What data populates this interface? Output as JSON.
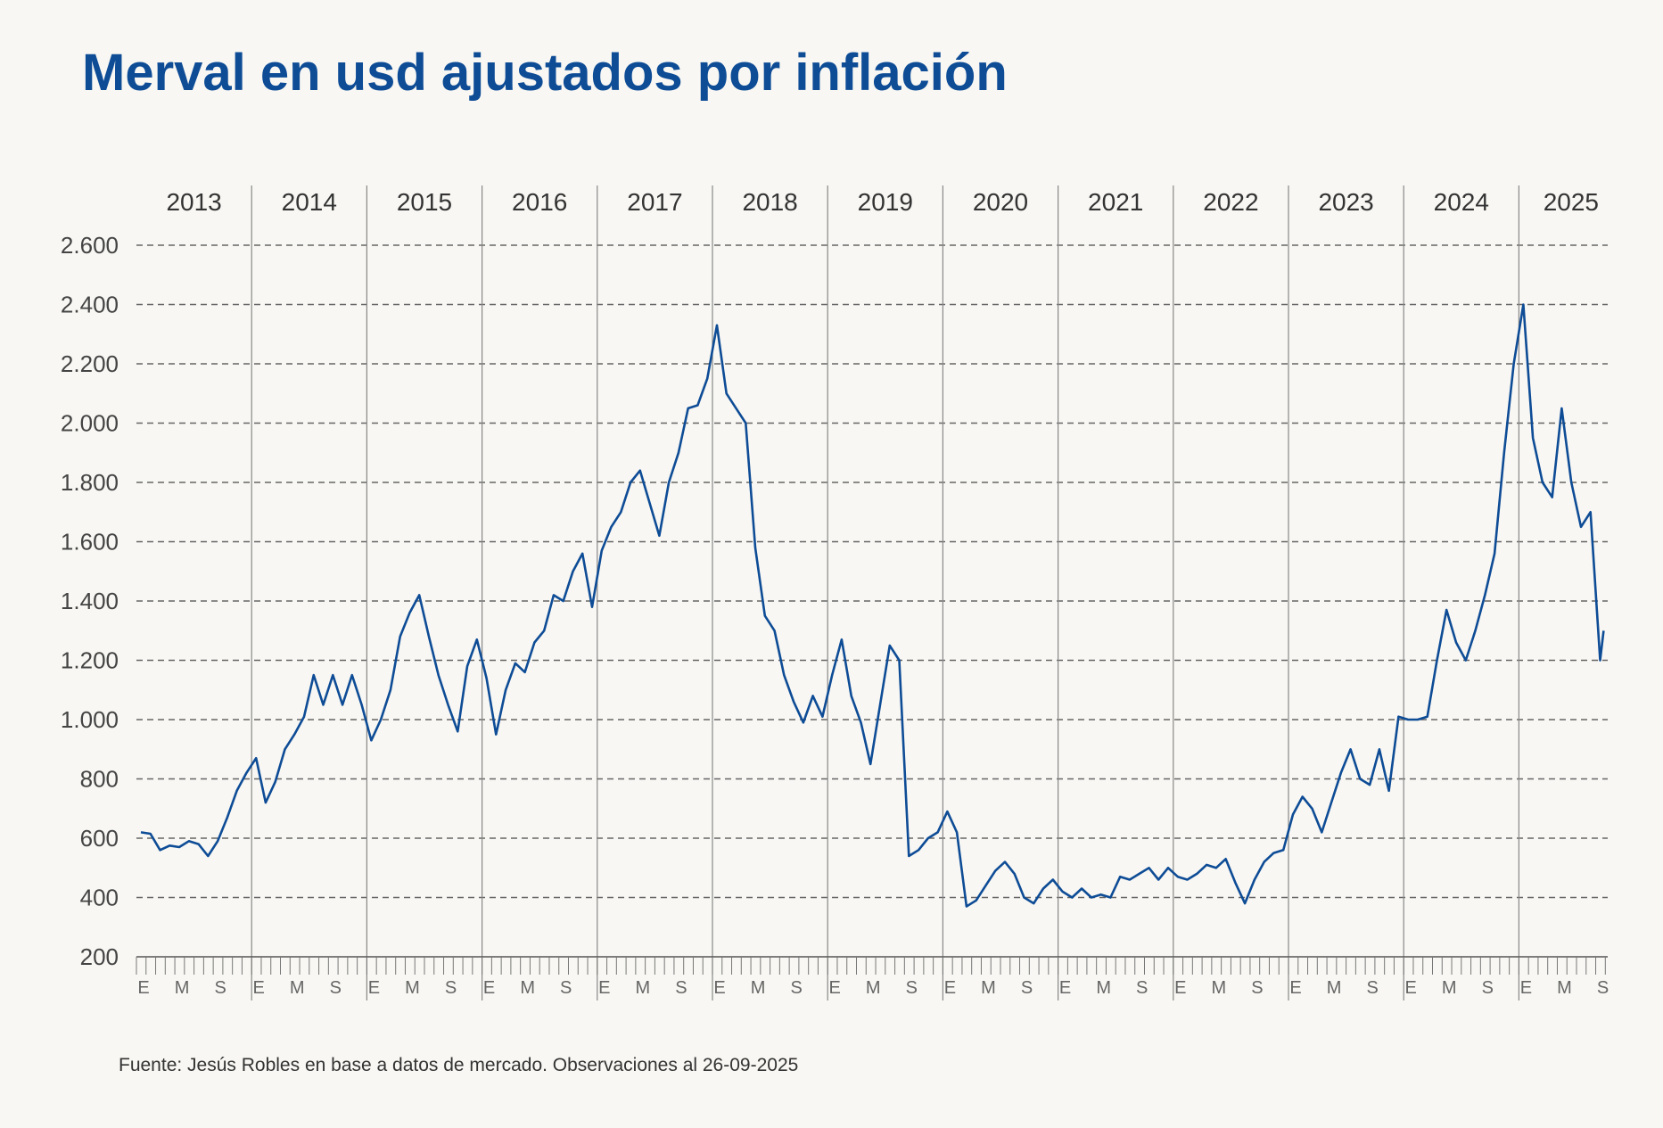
{
  "title": "Merval en usd ajustados por inflación",
  "source": "Fuente: Jesús Robles en base a datos de mercado. Observaciones al 26-09-2025",
  "colors": {
    "line": "#0e4c96",
    "title": "#0e4c96",
    "grid": "#666666",
    "background": "#f8f7f3"
  },
  "chart_data": {
    "type": "line",
    "title": "Merval en usd ajustados por inflación",
    "xlabel": "",
    "ylabel": "",
    "ylim": [
      200,
      2600
    ],
    "yticks": [
      200,
      400,
      600,
      800,
      1000,
      1200,
      1400,
      1600,
      1800,
      2000,
      2200,
      2400,
      2600
    ],
    "ytick_labels": [
      "200",
      "400",
      "600",
      "800",
      "1.000",
      "1.200",
      "1.400",
      "1.600",
      "1.800",
      "2.000",
      "2.200",
      "2.400",
      "2.600"
    ],
    "years": [
      "2013",
      "2014",
      "2015",
      "2016",
      "2017",
      "2018",
      "2019",
      "2020",
      "2021",
      "2022",
      "2023",
      "2024",
      "2025"
    ],
    "month_labels": [
      "E",
      "M",
      "S"
    ],
    "grid": "horizontal dashed",
    "series": [
      {
        "color": "#0e4c96",
        "points": [
          [
            "2013-01",
            620
          ],
          [
            "2013-02",
            615
          ],
          [
            "2013-03",
            560
          ],
          [
            "2013-04",
            575
          ],
          [
            "2013-05",
            570
          ],
          [
            "2013-06",
            590
          ],
          [
            "2013-07",
            580
          ],
          [
            "2013-08",
            540
          ],
          [
            "2013-09",
            590
          ],
          [
            "2013-10",
            670
          ],
          [
            "2013-11",
            760
          ],
          [
            "2013-12",
            820
          ],
          [
            "2014-01",
            870
          ],
          [
            "2014-02",
            720
          ],
          [
            "2014-03",
            790
          ],
          [
            "2014-04",
            900
          ],
          [
            "2014-05",
            950
          ],
          [
            "2014-06",
            1010
          ],
          [
            "2014-07",
            1150
          ],
          [
            "2014-08",
            1050
          ],
          [
            "2014-09",
            1150
          ],
          [
            "2014-10",
            1050
          ],
          [
            "2014-11",
            1150
          ],
          [
            "2014-12",
            1050
          ],
          [
            "2015-01",
            930
          ],
          [
            "2015-02",
            1000
          ],
          [
            "2015-03",
            1100
          ],
          [
            "2015-04",
            1280
          ],
          [
            "2015-05",
            1360
          ],
          [
            "2015-06",
            1420
          ],
          [
            "2015-07",
            1280
          ],
          [
            "2015-08",
            1150
          ],
          [
            "2015-09",
            1050
          ],
          [
            "2015-10",
            960
          ],
          [
            "2015-11",
            1180
          ],
          [
            "2015-12",
            1270
          ],
          [
            "2016-01",
            1140
          ],
          [
            "2016-02",
            950
          ],
          [
            "2016-03",
            1100
          ],
          [
            "2016-04",
            1190
          ],
          [
            "2016-05",
            1160
          ],
          [
            "2016-06",
            1260
          ],
          [
            "2016-07",
            1300
          ],
          [
            "2016-08",
            1420
          ],
          [
            "2016-09",
            1400
          ],
          [
            "2016-10",
            1500
          ],
          [
            "2016-11",
            1560
          ],
          [
            "2016-12",
            1380
          ],
          [
            "2017-01",
            1570
          ],
          [
            "2017-02",
            1650
          ],
          [
            "2017-03",
            1700
          ],
          [
            "2017-04",
            1800
          ],
          [
            "2017-05",
            1840
          ],
          [
            "2017-06",
            1730
          ],
          [
            "2017-07",
            1620
          ],
          [
            "2017-08",
            1800
          ],
          [
            "2017-09",
            1900
          ],
          [
            "2017-10",
            2050
          ],
          [
            "2017-11",
            2060
          ],
          [
            "2017-12",
            2150
          ],
          [
            "2018-01",
            2330
          ],
          [
            "2018-02",
            2100
          ],
          [
            "2018-03",
            2050
          ],
          [
            "2018-04",
            2000
          ],
          [
            "2018-05",
            1580
          ],
          [
            "2018-06",
            1350
          ],
          [
            "2018-07",
            1300
          ],
          [
            "2018-08",
            1150
          ],
          [
            "2018-09",
            1060
          ],
          [
            "2018-10",
            990
          ],
          [
            "2018-11",
            1080
          ],
          [
            "2018-12",
            1010
          ],
          [
            "2019-01",
            1150
          ],
          [
            "2019-02",
            1270
          ],
          [
            "2019-03",
            1080
          ],
          [
            "2019-04",
            990
          ],
          [
            "2019-05",
            850
          ],
          [
            "2019-06",
            1050
          ],
          [
            "2019-07",
            1250
          ],
          [
            "2019-08",
            1200
          ],
          [
            "2019-09",
            540
          ],
          [
            "2019-10",
            560
          ],
          [
            "2019-11",
            600
          ],
          [
            "2019-12",
            620
          ],
          [
            "2020-01",
            690
          ],
          [
            "2020-02",
            620
          ],
          [
            "2020-03",
            370
          ],
          [
            "2020-04",
            390
          ],
          [
            "2020-05",
            440
          ],
          [
            "2020-06",
            490
          ],
          [
            "2020-07",
            520
          ],
          [
            "2020-08",
            480
          ],
          [
            "2020-09",
            400
          ],
          [
            "2020-10",
            380
          ],
          [
            "2020-11",
            430
          ],
          [
            "2020-12",
            460
          ],
          [
            "2021-01",
            420
          ],
          [
            "2021-02",
            400
          ],
          [
            "2021-03",
            430
          ],
          [
            "2021-04",
            400
          ],
          [
            "2021-05",
            410
          ],
          [
            "2021-06",
            400
          ],
          [
            "2021-07",
            470
          ],
          [
            "2021-08",
            460
          ],
          [
            "2021-09",
            480
          ],
          [
            "2021-10",
            500
          ],
          [
            "2021-11",
            460
          ],
          [
            "2021-12",
            500
          ],
          [
            "2022-01",
            470
          ],
          [
            "2022-02",
            460
          ],
          [
            "2022-03",
            480
          ],
          [
            "2022-04",
            510
          ],
          [
            "2022-05",
            500
          ],
          [
            "2022-06",
            530
          ],
          [
            "2022-07",
            450
          ],
          [
            "2022-08",
            380
          ],
          [
            "2022-09",
            460
          ],
          [
            "2022-10",
            520
          ],
          [
            "2022-11",
            550
          ],
          [
            "2022-12",
            560
          ],
          [
            "2023-01",
            680
          ],
          [
            "2023-02",
            740
          ],
          [
            "2023-03",
            700
          ],
          [
            "2023-04",
            620
          ],
          [
            "2023-05",
            720
          ],
          [
            "2023-06",
            820
          ],
          [
            "2023-07",
            900
          ],
          [
            "2023-08",
            800
          ],
          [
            "2023-09",
            780
          ],
          [
            "2023-10",
            900
          ],
          [
            "2023-11",
            760
          ],
          [
            "2023-12",
            1010
          ],
          [
            "2024-01",
            1000
          ],
          [
            "2024-02",
            1000
          ],
          [
            "2024-03",
            1010
          ],
          [
            "2024-04",
            1200
          ],
          [
            "2024-05",
            1370
          ],
          [
            "2024-06",
            1260
          ],
          [
            "2024-07",
            1200
          ],
          [
            "2024-08",
            1300
          ],
          [
            "2024-09",
            1420
          ],
          [
            "2024-10",
            1560
          ],
          [
            "2024-11",
            1900
          ],
          [
            "2024-12",
            2200
          ],
          [
            "2025-01",
            2400
          ],
          [
            "2025-02",
            1950
          ],
          [
            "2025-03",
            1800
          ],
          [
            "2025-04",
            1750
          ],
          [
            "2025-05",
            2050
          ],
          [
            "2025-06",
            1800
          ],
          [
            "2025-07",
            1650
          ],
          [
            "2025-08",
            1700
          ],
          [
            "2025-09",
            1200
          ],
          [
            "2025-09-26",
            1300
          ]
        ]
      }
    ]
  }
}
